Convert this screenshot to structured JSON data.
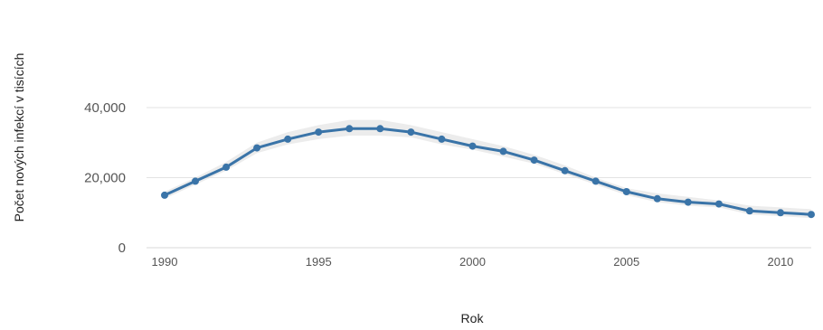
{
  "chart_data": {
    "type": "line",
    "title": "",
    "xlabel": "Rok",
    "ylabel": "Počet nových infekcí v tisících",
    "x": [
      1990,
      1991,
      1992,
      1993,
      1994,
      1995,
      1996,
      1997,
      1998,
      1999,
      2000,
      2001,
      2002,
      2003,
      2004,
      2005,
      2006,
      2007,
      2008,
      2009,
      2010,
      2011
    ],
    "series": [
      {
        "values": [
          15000,
          19000,
          23000,
          28500,
          31000,
          33000,
          34000,
          34000,
          33000,
          31000,
          29000,
          27500,
          25000,
          22000,
          19000,
          16000,
          14000,
          13000,
          12500,
          10500,
          10000,
          9500
        ],
        "lower": [
          14000,
          18000,
          22000,
          27000,
          29500,
          31000,
          32000,
          32000,
          31500,
          29500,
          28000,
          26000,
          24000,
          21000,
          18000,
          15000,
          13000,
          12000,
          11500,
          9500,
          9000,
          8500
        ],
        "upper": [
          16000,
          20000,
          24500,
          30000,
          33000,
          35000,
          36500,
          36500,
          35000,
          33000,
          31000,
          29000,
          26500,
          23500,
          20000,
          17000,
          15500,
          14500,
          13500,
          12000,
          11500,
          11000
        ],
        "color": "#3a74a8",
        "band_color": "#dcdcdc"
      }
    ],
    "yticks": [
      0,
      20000,
      40000
    ],
    "ytick_labels": [
      "0",
      "20,000",
      "40,000"
    ],
    "xticks": [
      1990,
      1995,
      2000,
      2005,
      2010
    ],
    "xtick_labels": [
      "1990",
      "1995",
      "2000",
      "2005",
      "2010"
    ],
    "xlim": [
      1990,
      2011
    ],
    "ylim": [
      0,
      40000
    ],
    "grid": true,
    "legend": "none"
  }
}
